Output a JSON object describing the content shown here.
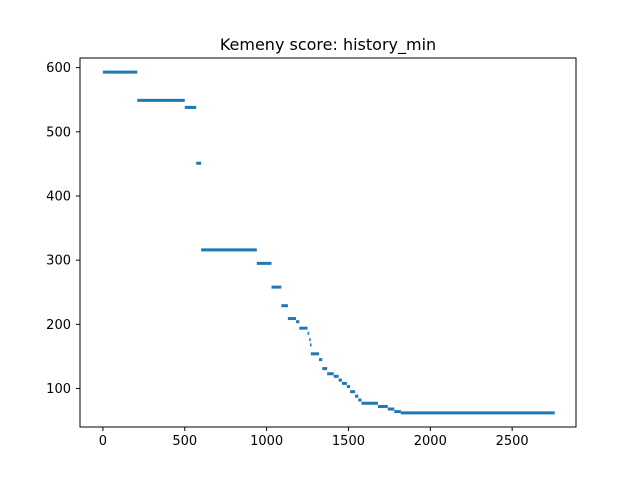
{
  "chart_data": {
    "type": "scatter",
    "title": "Kemeny score: history_min",
    "xlabel": "",
    "ylabel": "",
    "xlim": [
      -140,
      2890
    ],
    "ylim": [
      40,
      615
    ],
    "x_ticks": [
      0,
      500,
      1000,
      1500,
      2000,
      2500
    ],
    "y_ticks": [
      100,
      200,
      300,
      400,
      500,
      600
    ],
    "grid": false,
    "legend": "none",
    "colors": {
      "series": "#1f77b4",
      "axes": "#000000",
      "background": "#ffffff"
    },
    "series": [
      {
        "segments": [
          {
            "x_start": 0,
            "x_end": 210,
            "y": 593
          },
          {
            "x_start": 210,
            "x_end": 500,
            "y": 549
          },
          {
            "x_start": 500,
            "x_end": 570,
            "y": 538
          },
          {
            "x_start": 570,
            "x_end": 600,
            "y": 451
          },
          {
            "x_start": 600,
            "x_end": 940,
            "y": 316
          },
          {
            "x_start": 940,
            "x_end": 1030,
            "y": 295
          },
          {
            "x_start": 1030,
            "x_end": 1090,
            "y": 258
          },
          {
            "x_start": 1090,
            "x_end": 1130,
            "y": 229
          },
          {
            "x_start": 1130,
            "x_end": 1180,
            "y": 209
          },
          {
            "x_start": 1180,
            "x_end": 1200,
            "y": 204
          },
          {
            "x_start": 1200,
            "x_end": 1250,
            "y": 194
          },
          {
            "x_start": 1250,
            "x_end": 1260,
            "y": 186
          },
          {
            "x_start": 1260,
            "x_end": 1265,
            "y": 176
          },
          {
            "x_start": 1265,
            "x_end": 1270,
            "y": 168
          },
          {
            "x_start": 1270,
            "x_end": 1320,
            "y": 154
          },
          {
            "x_start": 1320,
            "x_end": 1340,
            "y": 145
          },
          {
            "x_start": 1340,
            "x_end": 1370,
            "y": 131
          },
          {
            "x_start": 1370,
            "x_end": 1410,
            "y": 123
          },
          {
            "x_start": 1410,
            "x_end": 1440,
            "y": 119
          },
          {
            "x_start": 1440,
            "x_end": 1460,
            "y": 113
          },
          {
            "x_start": 1460,
            "x_end": 1490,
            "y": 108
          },
          {
            "x_start": 1490,
            "x_end": 1510,
            "y": 103
          },
          {
            "x_start": 1510,
            "x_end": 1540,
            "y": 95
          },
          {
            "x_start": 1540,
            "x_end": 1560,
            "y": 88
          },
          {
            "x_start": 1560,
            "x_end": 1580,
            "y": 82
          },
          {
            "x_start": 1580,
            "x_end": 1680,
            "y": 77
          },
          {
            "x_start": 1680,
            "x_end": 1740,
            "y": 72
          },
          {
            "x_start": 1740,
            "x_end": 1780,
            "y": 68
          },
          {
            "x_start": 1780,
            "x_end": 1820,
            "y": 64
          },
          {
            "x_start": 1820,
            "x_end": 2760,
            "y": 62
          }
        ]
      }
    ]
  }
}
